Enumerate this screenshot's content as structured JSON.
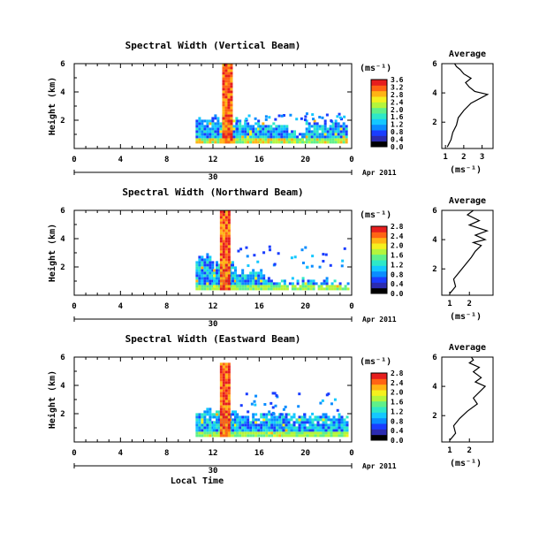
{
  "common": {
    "ylabel": "Height (km)",
    "xlabel": "Local Time",
    "unit": "(ms⁻¹)",
    "date_label": "Apr 2011",
    "day_label": "30",
    "avg_title": "Average",
    "avg_xlabel": "(ms⁻¹)",
    "x_ticks": [
      "0",
      "4",
      "8",
      "12",
      "16",
      "20",
      "0"
    ],
    "y_ticks": [
      "6",
      "4",
      "2"
    ],
    "colorbar_palette": [
      "#000000",
      "#2b2bb0",
      "#1a3dff",
      "#0a8cff",
      "#14c8ff",
      "#2ee8c8",
      "#5ff08a",
      "#b4f53c",
      "#f5f01e",
      "#ffb414",
      "#ff6414",
      "#e61e1e"
    ]
  },
  "chart_data": [
    {
      "type": "heatmap",
      "title": "Spectral Width (Vertical Beam)",
      "xlabel": "",
      "ylabel": "Height (km)",
      "xlim": [
        0,
        24
      ],
      "ylim": [
        0,
        6
      ],
      "colorbar_ticks": [
        "3.6",
        "3.2",
        "2.8",
        "2.4",
        "2.0",
        "1.6",
        "1.2",
        "0.8",
        "0.4",
        "0.0"
      ],
      "colorbar_range": [
        0,
        3.6
      ],
      "coverage": [
        {
          "from": 10.5,
          "to": 14,
          "top": 2.2
        },
        {
          "from": 14,
          "to": 16,
          "top": 1.7
        },
        {
          "from": 16,
          "to": 18.5,
          "top": 1.6
        },
        {
          "from": 18.5,
          "to": 20,
          "top": 1.1
        },
        {
          "from": 20,
          "to": 23.6,
          "top": 1.7
        }
      ],
      "high_band": {
        "from": 12.8,
        "to": 13.5,
        "top": 5.8
      },
      "average_profile": {
        "xticks": [
          "1",
          "2",
          "3"
        ],
        "xlim": [
          0.8,
          3.6
        ],
        "ylim": [
          0.2,
          6
        ],
        "x": [
          1.1,
          1.3,
          1.4,
          1.6,
          1.7,
          2.0,
          2.4,
          3.3,
          2.6,
          2.3,
          2.1,
          2.4,
          2.0,
          1.8,
          1.6,
          1.5
        ],
        "y": [
          0.3,
          0.8,
          1.3,
          1.8,
          2.3,
          2.8,
          3.3,
          3.9,
          4.1,
          4.4,
          4.7,
          5.0,
          5.3,
          5.6,
          5.8,
          6.0
        ]
      }
    },
    {
      "type": "heatmap",
      "title": "Spectral Width (Northward Beam)",
      "xlabel": "",
      "ylabel": "Height (km)",
      "xlim": [
        0,
        24
      ],
      "ylim": [
        0,
        6
      ],
      "colorbar_ticks": [
        "2.8",
        "2.4",
        "2.0",
        "1.6",
        "1.2",
        "0.8",
        "0.4",
        "0.0"
      ],
      "colorbar_range": [
        0,
        2.8
      ],
      "coverage": [
        {
          "from": 10.5,
          "to": 12,
          "top": 2.6
        },
        {
          "from": 12,
          "to": 14,
          "top": 2.2
        },
        {
          "from": 14,
          "to": 16.5,
          "top": 1.6
        },
        {
          "from": 16.5,
          "to": 19,
          "top": 1.0
        },
        {
          "from": 19,
          "to": 23.6,
          "top": 0.9
        }
      ],
      "high_band": {
        "from": 12.6,
        "to": 13.4,
        "top": 5.9
      },
      "average_profile": {
        "xticks": [
          "1",
          "2"
        ],
        "xlim": [
          0.6,
          3.2
        ],
        "ylim": [
          0.2,
          6
        ],
        "x": [
          1.0,
          1.3,
          1.2,
          1.5,
          1.8,
          2.1,
          2.3,
          2.6,
          2.2,
          2.8,
          2.3,
          2.9,
          2.0,
          2.5,
          1.9,
          2.2
        ],
        "y": [
          0.3,
          0.8,
          1.3,
          1.8,
          2.3,
          2.8,
          3.2,
          3.6,
          3.8,
          4.0,
          4.3,
          4.6,
          5.0,
          5.3,
          5.7,
          6.0
        ]
      }
    },
    {
      "type": "heatmap",
      "title": "Spectral Width (Eastward Beam)",
      "xlabel": "Local Time",
      "ylabel": "Height (km)",
      "xlim": [
        0,
        24
      ],
      "ylim": [
        0,
        6
      ],
      "colorbar_ticks": [
        "2.8",
        "2.4",
        "2.0",
        "1.6",
        "1.2",
        "0.8",
        "0.4",
        "0.0"
      ],
      "colorbar_range": [
        0,
        2.8
      ],
      "coverage": [
        {
          "from": 10.5,
          "to": 12,
          "top": 2.1
        },
        {
          "from": 12,
          "to": 14,
          "top": 2.1
        },
        {
          "from": 14,
          "to": 18,
          "top": 1.9
        },
        {
          "from": 18,
          "to": 23.6,
          "top": 1.8
        }
      ],
      "high_band": {
        "from": 12.6,
        "to": 13.5,
        "top": 5.6
      },
      "average_profile": {
        "xticks": [
          "1",
          "2"
        ],
        "xlim": [
          0.6,
          3.2
        ],
        "ylim": [
          0.2,
          6
        ],
        "x": [
          1.0,
          1.3,
          1.2,
          1.5,
          1.9,
          2.4,
          2.2,
          2.5,
          2.8,
          2.3,
          2.6,
          2.2,
          2.5,
          2.0,
          2.2,
          2.1
        ],
        "y": [
          0.3,
          0.8,
          1.3,
          1.8,
          2.3,
          2.8,
          3.2,
          3.6,
          4.0,
          4.3,
          4.6,
          5.0,
          5.3,
          5.6,
          5.8,
          6.0
        ]
      }
    }
  ]
}
